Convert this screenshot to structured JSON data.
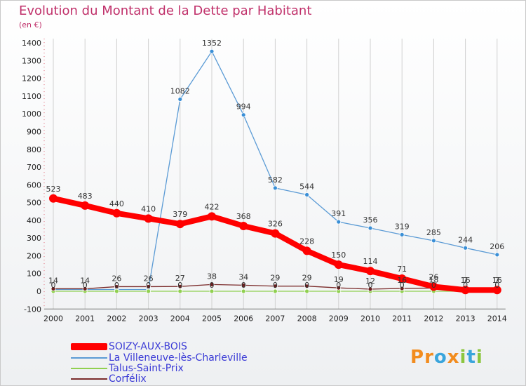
{
  "title": "Evolution du Montant de la Dette par Habitant",
  "subtitle": "(en €)",
  "logo": {
    "text": "Proxiti",
    "letters": [
      "P",
      "r",
      "o",
      "x",
      "i",
      "t",
      "i"
    ],
    "colors": [
      "#f28c1e",
      "#f28c1e",
      "#3aa5dc",
      "#f28c1e",
      "#8cc63f",
      "#3aa5dc",
      "#8cc63f"
    ]
  },
  "chart_data": {
    "type": "line",
    "categories": [
      "2000",
      "2001",
      "2002",
      "2003",
      "2004",
      "2005",
      "2006",
      "2007",
      "2008",
      "2009",
      "2010",
      "2011",
      "2012",
      "2013",
      "2014"
    ],
    "ylim": [
      -100,
      1400
    ],
    "yticks": [
      "-100",
      "0",
      "100",
      "200",
      "300",
      "400",
      "500",
      "600",
      "700",
      "800",
      "900",
      "1000",
      "1100",
      "1200",
      "1300",
      "1400"
    ],
    "grid": "vertical",
    "legend_position": "bottom-left",
    "series": [
      {
        "name": "SOIZY-AUX-BOIS",
        "color": "#ff0000",
        "values": [
          523,
          483,
          440,
          410,
          379,
          422,
          368,
          326,
          228,
          150,
          114,
          71,
          26,
          7,
          7
        ],
        "labels": [
          "523",
          "483",
          "440",
          "410",
          "379",
          "422",
          "368",
          "326",
          "228",
          "150",
          "114",
          "71",
          "26",
          "7",
          "7"
        ]
      },
      {
        "name": "La Villeneuve-lès-Charleville",
        "color": "#5b9bd5",
        "values": [
          10,
          10,
          10,
          10,
          1082,
          1352,
          994,
          582,
          544,
          391,
          356,
          319,
          285,
          244,
          206
        ],
        "labels": [
          "",
          "",
          "",
          "",
          "1082",
          "1352",
          "994",
          "582",
          "544",
          "391",
          "356",
          "319",
          "285",
          "244",
          "206"
        ]
      },
      {
        "name": "Talus-Saint-Prix",
        "color": "#90d050",
        "values": [
          0,
          0,
          0,
          0,
          0,
          0,
          0,
          0,
          0,
          0,
          0,
          0,
          0,
          0,
          0
        ],
        "labels": [
          "0",
          "0",
          "0",
          "0",
          "0",
          "0",
          "0",
          "0",
          "0",
          "0",
          "0",
          "0",
          "0",
          "0",
          "0"
        ]
      },
      {
        "name": "Corfélix",
        "color": "#7b2c2c",
        "values": [
          14,
          14,
          26,
          26,
          27,
          38,
          34,
          29,
          29,
          19,
          12,
          16,
          18,
          16,
          16
        ],
        "labels": [
          "14",
          "14",
          "26",
          "26",
          "27",
          "38",
          "34",
          "29",
          "29",
          "19",
          "12",
          "16",
          "18",
          "16",
          "16"
        ]
      }
    ]
  }
}
